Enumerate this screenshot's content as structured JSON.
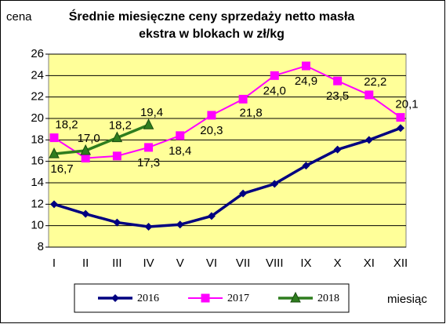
{
  "chart_data": {
    "type": "line",
    "title": [
      "Średnie miesięczne ceny sprzedaży netto masła",
      "ekstra w blokach w zł/kg"
    ],
    "y_label": "cena",
    "x_label": "miesiąc",
    "categories": [
      "I",
      "II",
      "III",
      "IV",
      "V",
      "VI",
      "VII",
      "VIII",
      "IX",
      "X",
      "XI",
      "XII"
    ],
    "series": [
      {
        "name": "2016",
        "color": "#000080",
        "marker": "diamond",
        "values": [
          12.0,
          11.1,
          10.3,
          9.9,
          10.1,
          10.9,
          13.0,
          13.9,
          15.6,
          17.1,
          18.0,
          19.1
        ]
      },
      {
        "name": "2017",
        "color": "#ff00ff",
        "marker": "square",
        "values": [
          18.2,
          16.3,
          16.5,
          17.3,
          18.4,
          20.3,
          21.8,
          24.0,
          24.9,
          23.5,
          22.2,
          20.1
        ],
        "value_labels": [
          "18,2",
          null,
          null,
          "17,3",
          "18,4",
          "20,3",
          "21,8",
          "24,0",
          "24,9",
          "23,5",
          "22,2",
          "20,1"
        ]
      },
      {
        "name": "2018",
        "color": "#2e7d1e",
        "marker": "triangle",
        "values": [
          16.7,
          17.0,
          18.2,
          19.4,
          null,
          null,
          null,
          null,
          null,
          null,
          null,
          null
        ],
        "value_labels": [
          "16,7",
          "17,0",
          "18,2",
          "19,4",
          null,
          null,
          null,
          null,
          null,
          null,
          null,
          null
        ]
      }
    ],
    "ylim": [
      8,
      26
    ],
    "yticks": [
      8,
      10,
      12,
      14,
      16,
      18,
      20,
      22,
      24,
      26
    ],
    "grid": true,
    "background": "#ffff99",
    "legend": "bottom"
  }
}
